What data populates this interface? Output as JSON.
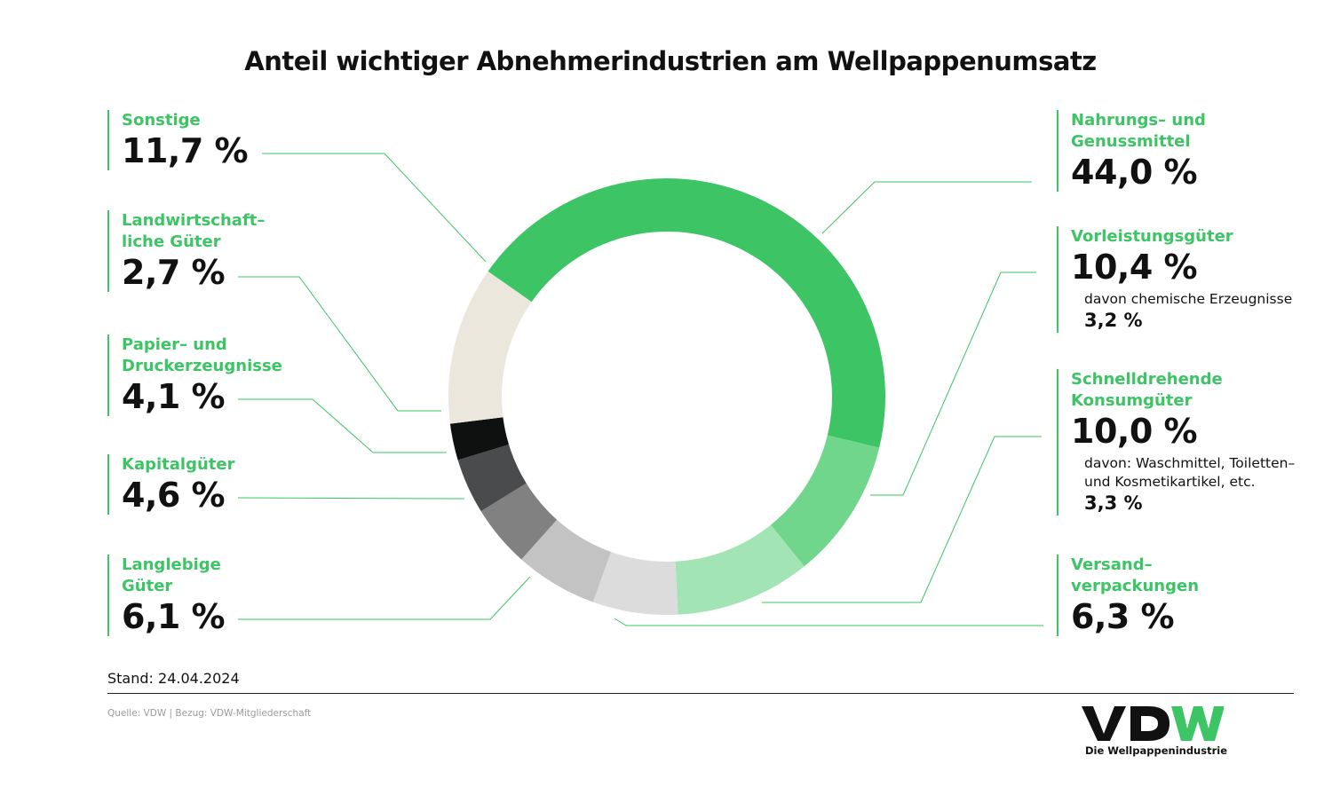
{
  "title": "Anteil wichtiger Abnehmerindustrien am Wellpappenumsatz",
  "chart_data": {
    "type": "pie",
    "title": "Anteil wichtiger Abnehmerindustrien am Wellpappenumsatz",
    "unit": "%",
    "start_angle_deg": -55,
    "slices": [
      {
        "label": "Nahrungs- und Genussmittel",
        "value": 44.0,
        "display": "44,0 %",
        "color": "#3dc464"
      },
      {
        "label": "Vorleistungsgüter",
        "value": 10.4,
        "display": "10,4 %",
        "color": "#6fd68b"
      },
      {
        "label": "Schnelldrehende Konsumgüter",
        "value": 10.0,
        "display": "10,0 %",
        "color": "#a2e4b3"
      },
      {
        "label": "Versandverpackungen",
        "value": 6.3,
        "display": "6,3 %",
        "color": "#dcdcdc"
      },
      {
        "label": "Langlebige Güter",
        "value": 6.1,
        "display": "6,1 %",
        "color": "#c3c3c3"
      },
      {
        "label": "Kapitalgüter",
        "value": 4.6,
        "display": "4,6 %",
        "color": "#818181"
      },
      {
        "label": "Papier- und Druckerzeugnisse",
        "value": 4.1,
        "display": "4,1 %",
        "color": "#4a4b4c"
      },
      {
        "label": "Landwirtschaftliche Güter",
        "value": 2.7,
        "display": "2,7 %",
        "color": "#0f1110"
      },
      {
        "label": "Sonstige",
        "value": 11.7,
        "display": "11,7 %",
        "color": "#ece7dc"
      }
    ]
  },
  "entries": {
    "sonstige": {
      "label": "Sonstige",
      "value": "11,7 %"
    },
    "landwirtschaft": {
      "label": "Landwirtschaft–\nliche Güter",
      "value": "2,7 %"
    },
    "papier": {
      "label": "Papier– und\nDruckerzeugnisse",
      "value": "4,1 %"
    },
    "kapital": {
      "label": "Kapitalgüter",
      "value": "4,6 %"
    },
    "langlebig": {
      "label": "Langlebige\nGüter",
      "value": "6,1 %"
    },
    "nahrung": {
      "label": "Nahrungs– und\nGenussmittel",
      "value": "44,0 %"
    },
    "vorleistung": {
      "label": "Vorleistungsgüter",
      "value": "10,4 %",
      "sub": "davon chemische Erzeugnisse",
      "subvalue": "3,2 %"
    },
    "konsum": {
      "label": "Schnelldrehende\nKonsumgüter",
      "value": "10,0 %",
      "sub": "davon: Waschmittel, Toiletten–\nund Kosmetikartikel, etc.",
      "subvalue": "3,3 %"
    },
    "versand": {
      "label": "Versand–\nverpackungen",
      "value": "6,3 %"
    }
  },
  "footer": {
    "stand": "Stand: 24.04.2024",
    "source": "Quelle: VDW | Bezug: VDW-Mitgliederschaft"
  },
  "logo": {
    "text": "VDW",
    "tagline": "Die Wellpappenindustrie",
    "dark_color": "#111111",
    "accent_color": "#3dc464"
  }
}
